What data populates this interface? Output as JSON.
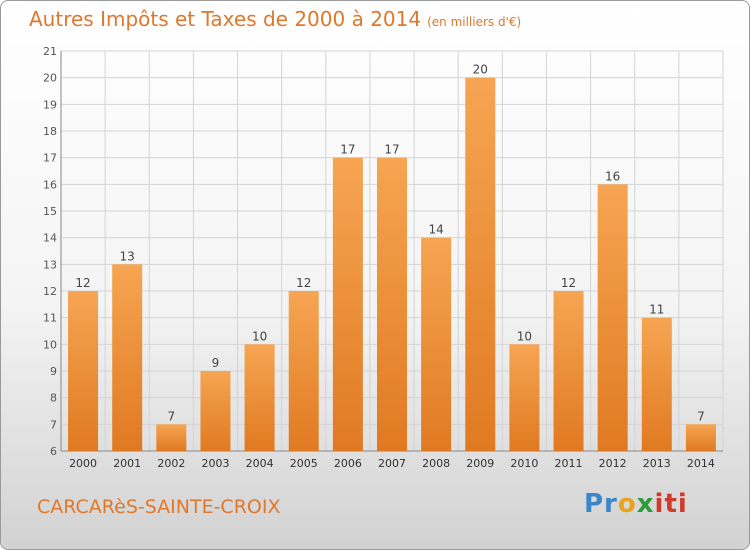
{
  "title": "Autres Impôts et Taxes de 2000 à 2014",
  "unit": "(en milliers d'€)",
  "commune": "CARCARèS-SAINTE-CROIX",
  "logo": {
    "text": "Proxiti",
    "colors": [
      "#3b86c8",
      "#e8a31d",
      "#2e9a3a",
      "#d03a2a"
    ]
  },
  "colors": {
    "bar_top": "#f6a552",
    "bar_bottom": "#e07a22",
    "accent": "#e0782c"
  },
  "chart_data": {
    "type": "bar",
    "categories": [
      "2000",
      "2001",
      "2002",
      "2003",
      "2004",
      "2005",
      "2006",
      "2007",
      "2008",
      "2009",
      "2010",
      "2011",
      "2012",
      "2013",
      "2014"
    ],
    "values": [
      12,
      13,
      7,
      9,
      10,
      12,
      17,
      17,
      14,
      20,
      10,
      12,
      16,
      11,
      7
    ],
    "ylim": [
      6,
      21
    ],
    "yticks": [
      6,
      7,
      8,
      9,
      10,
      11,
      12,
      13,
      14,
      15,
      16,
      17,
      18,
      19,
      20,
      21
    ],
    "grid": true,
    "title": "Autres Impôts et Taxes de 2000 à 2014",
    "xlabel": "",
    "ylabel": ""
  }
}
